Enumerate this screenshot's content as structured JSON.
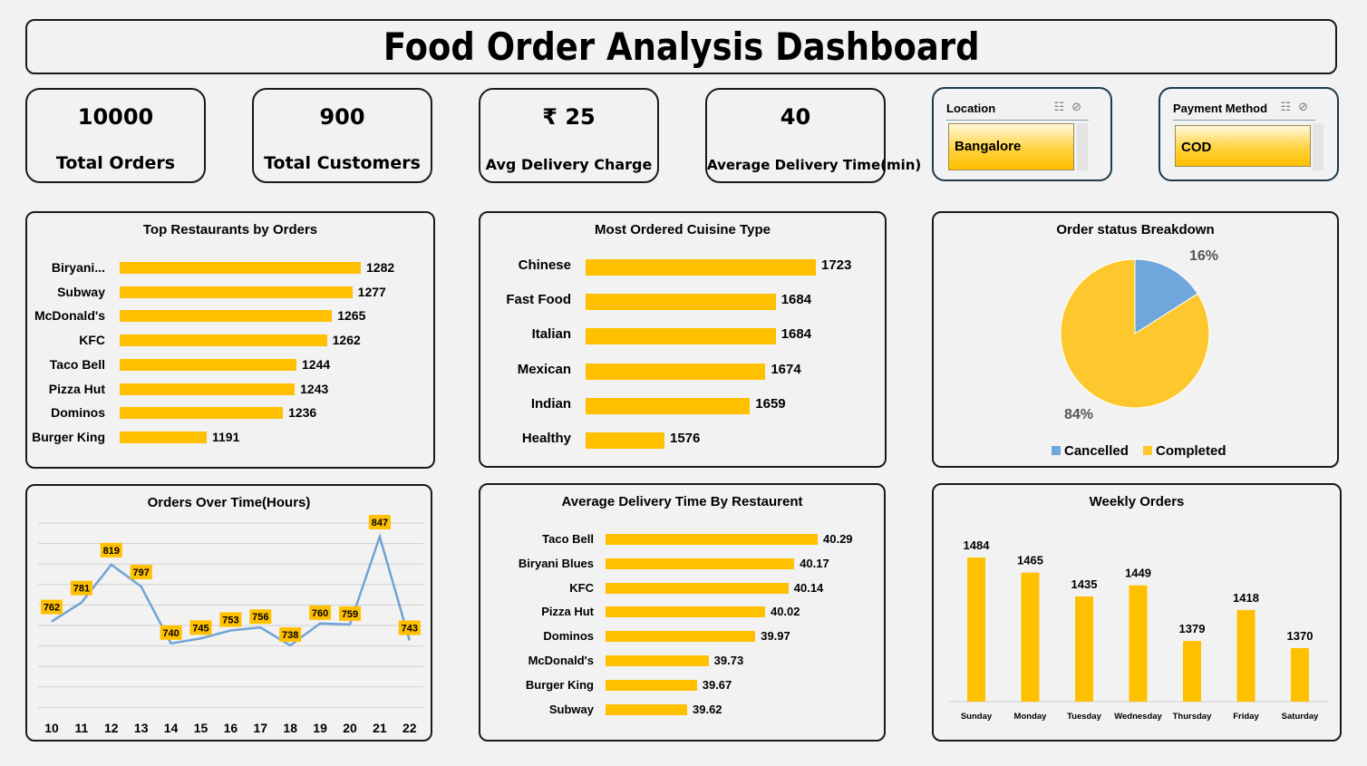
{
  "title": "Food Order Analysis Dashboard",
  "kpis": [
    {
      "value": "10000",
      "label": "Total Orders"
    },
    {
      "value": "900",
      "label": "Total Customers"
    },
    {
      "value": "₹ 25",
      "label": "Avg Delivery Charge"
    },
    {
      "value": "40",
      "label": "Average Delivery Time(min)"
    }
  ],
  "slicers": [
    {
      "header": "Location",
      "selected": "Bangalore"
    },
    {
      "header": "Payment Method",
      "selected": "COD"
    }
  ],
  "colors": {
    "bar": "#ffc000",
    "pie_completed": "#fdc82e",
    "pie_cancelled": "#6fa6dc",
    "line": "#6fa3d8"
  },
  "chart_data": [
    {
      "type": "bar",
      "orientation": "horizontal",
      "title": "Top Restaurants by Orders",
      "categories": [
        "Biryani...",
        "Subway",
        "McDonald's",
        "KFC",
        "Taco Bell",
        "Pizza Hut",
        "Dominos",
        "Burger King"
      ],
      "values": [
        1282,
        1277,
        1265,
        1262,
        1244,
        1243,
        1236,
        1191
      ]
    },
    {
      "type": "bar",
      "orientation": "horizontal",
      "title": "Most Ordered Cuisine Type",
      "categories": [
        "Chinese",
        "Fast Food",
        "Italian",
        "Mexican",
        "Indian",
        "Healthy"
      ],
      "values": [
        1723,
        1684,
        1684,
        1674,
        1659,
        1576
      ]
    },
    {
      "type": "pie",
      "title": "Order status Breakdown",
      "categories": [
        "Cancelled",
        "Completed"
      ],
      "values": [
        16,
        84
      ],
      "labels": [
        "16%",
        "84%"
      ],
      "legend": "bottom"
    },
    {
      "type": "line",
      "title": "Orders Over Time(Hours)",
      "x": [
        "10",
        "11",
        "12",
        "13",
        "14",
        "15",
        "16",
        "17",
        "18",
        "19",
        "20",
        "21",
        "22"
      ],
      "values": [
        762,
        781,
        819,
        797,
        740,
        745,
        753,
        756,
        738,
        760,
        759,
        847,
        743
      ],
      "grid": true
    },
    {
      "type": "bar",
      "orientation": "horizontal",
      "title": "Average Delivery Time By Restaurent",
      "categories": [
        "Taco Bell",
        "Biryani Blues",
        "KFC",
        "Pizza Hut",
        "Dominos",
        "McDonald's",
        "Burger King",
        "Subway"
      ],
      "values": [
        40.29,
        40.17,
        40.14,
        40.02,
        39.97,
        39.73,
        39.67,
        39.62
      ],
      "labels": [
        "40.29",
        "40.17",
        "40.14",
        "40.02",
        "39.97",
        "39.73",
        "39.67",
        "39.62"
      ]
    },
    {
      "type": "bar",
      "title": "Weekly Orders",
      "categories": [
        "Sunday",
        "Monday",
        "Tuesday",
        "Wednesday",
        "Thursday",
        "Friday",
        "Saturday"
      ],
      "values": [
        1484,
        1465,
        1435,
        1449,
        1379,
        1418,
        1370
      ]
    }
  ]
}
